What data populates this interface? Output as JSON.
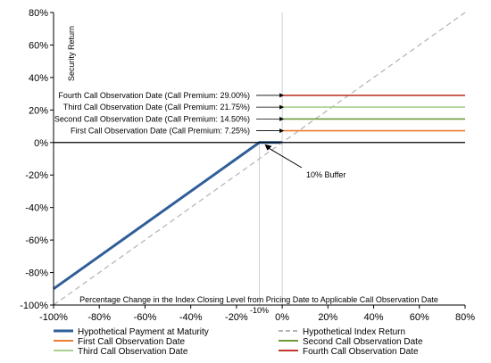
{
  "chart_data": {
    "type": "line",
    "xlabel": "Percentage Change in the Index Closing Level from Pricing Date to Applicable Call Observation Date",
    "ylabel": "Security Return",
    "xlim": [
      -100,
      80
    ],
    "ylim": [
      -100,
      80
    ],
    "x_ticks": [
      "-100%",
      "-80%",
      "-60%",
      "-40%",
      "-20%",
      "0%",
      "20%",
      "40%",
      "60%",
      "80%"
    ],
    "y_ticks": [
      "-100%",
      "-80%",
      "-60%",
      "-40%",
      "-20%",
      "0%",
      "20%",
      "40%",
      "60%",
      "80%"
    ],
    "grid": false,
    "legend_position": "bottom",
    "series": [
      {
        "name": "Hypothetical Payment at Maturity",
        "color": "#2f5e98",
        "style": "solid-thick",
        "points": [
          [
            -100,
            -90
          ],
          [
            -10,
            0
          ],
          [
            0,
            0
          ]
        ]
      },
      {
        "name": "Hypothetical Index Return",
        "color": "#b3b3b3",
        "style": "dashed",
        "points": [
          [
            -100,
            -100
          ],
          [
            80,
            80
          ]
        ]
      },
      {
        "name": "First Call Observation  Date",
        "color": "#ec7c30",
        "style": "solid",
        "points": [
          [
            0,
            7.25
          ],
          [
            80,
            7.25
          ]
        ]
      },
      {
        "name": "Second Call Observation Date",
        "color": "#6f9a3c",
        "style": "solid",
        "points": [
          [
            0,
            14.5
          ],
          [
            80,
            14.5
          ]
        ]
      },
      {
        "name": "Third Call Observation Date",
        "color": "#a8d08d",
        "style": "solid",
        "points": [
          [
            0,
            21.75
          ],
          [
            80,
            21.75
          ]
        ]
      },
      {
        "name": "Fourth Call Observation Date",
        "color": "#c0392b",
        "style": "solid",
        "points": [
          [
            0,
            29
          ],
          [
            80,
            29
          ]
        ]
      }
    ],
    "annotations": [
      {
        "text": "Fourth Call Observation Date (Call Premium: 29.00%)",
        "y": 29
      },
      {
        "text": "Third Call Observation Date (Call Premium: 21.75%)",
        "y": 21.75
      },
      {
        "text": "Second Call Observation Date (Call Premium: 14.50%)",
        "y": 14.5
      },
      {
        "text": "First Call Observation Date (Call Premium: 7.25%)",
        "y": 7.25
      }
    ],
    "buffer_label": "10% Buffer",
    "buffer_point": [
      -10,
      0
    ],
    "buffer_x_label": "-10%",
    "buffer_x": -10
  }
}
